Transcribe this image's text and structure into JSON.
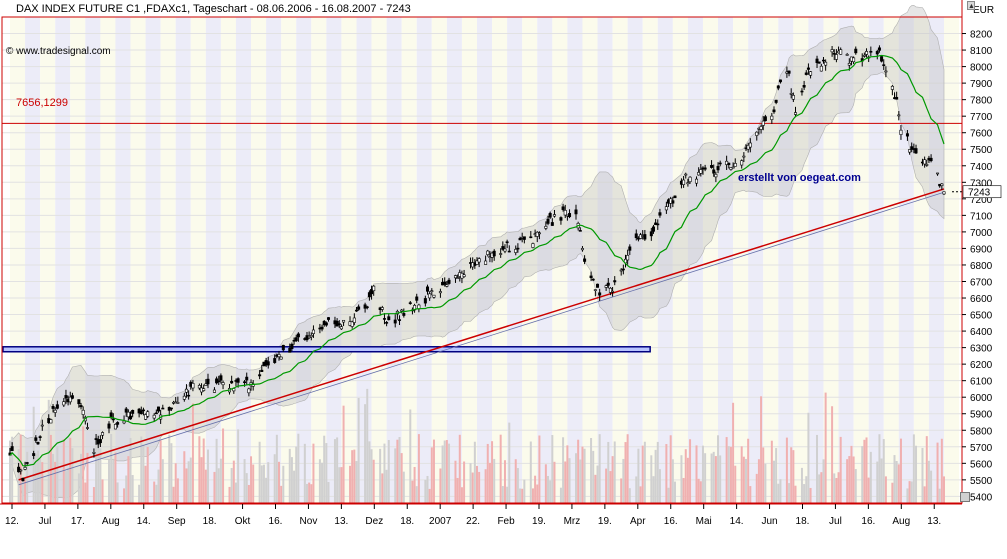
{
  "header": {
    "title": "DAX INDEX FUTURE C1 ,FDAXc1, Tageschart - 08.06.2006 - 16.08.2007 - 7243",
    "copyright": "© www.tradesignal.com",
    "watermark": "erstellt von oegeat.com",
    "currency": "EUR",
    "resistance_label": "7656,1299"
  },
  "colors": {
    "candles": "#000000",
    "moving_average": "#009900",
    "bollinger_band": "#c8c8c8",
    "resistance_line": "#cc0000",
    "trendline": "#cc0000",
    "support_zone": "#b8c4ff",
    "volume_up": "#f0b0b0",
    "volume_down": "#d0d0d0",
    "month_band_a": "#ececf8",
    "month_band_b": "#fbfbec"
  },
  "chart_data": {
    "type": "candlestick",
    "title": "DAX INDEX FUTURE C1 ,FDAXc1, Tageschart - 08.06.2006 - 16.08.2007 - 7243",
    "ylabel": "EUR",
    "ylim": [
      5360,
      8300
    ],
    "y_ticks": [
      5400,
      5500,
      5600,
      5700,
      5800,
      5900,
      6000,
      6100,
      6200,
      6300,
      6400,
      6500,
      6600,
      6700,
      6800,
      6900,
      7000,
      7100,
      7200,
      7300,
      7400,
      7500,
      7600,
      7700,
      7800,
      7900,
      8000,
      8100,
      8200
    ],
    "x_labels": [
      "12.",
      "Jul",
      "17.",
      "Aug",
      "14.",
      "Sep",
      "18.",
      "Okt",
      "16.",
      "Nov",
      "13.",
      "Dez",
      "18.",
      "2007",
      "22.",
      "Feb",
      "19.",
      "Mrz",
      "19.",
      "Apr",
      "16.",
      "Mai",
      "14.",
      "Jun",
      "18.",
      "Jul",
      "16.",
      "Aug",
      "13."
    ],
    "last_price": 7243,
    "last_price_label": "7243",
    "resistance_level": 7656.1299,
    "support_zone": [
      6275,
      6305
    ],
    "trendline": {
      "from": [
        "12.06.2006",
        5500
      ],
      "to": [
        "16.08.2007",
        7260
      ]
    },
    "close_path": [
      [
        "08.06.2006",
        5680
      ],
      [
        "14.06.2006",
        5520
      ],
      [
        "23.06.2006",
        5800
      ],
      [
        "30.06.2006",
        5950
      ],
      [
        "10.07.2006",
        5990
      ],
      [
        "17.07.2006",
        5700
      ],
      [
        "25.07.2006",
        5850
      ],
      [
        "04.08.2006",
        5900
      ],
      [
        "14.08.2006",
        5880
      ],
      [
        "24.08.2006",
        5970
      ],
      [
        "01.09.2006",
        6060
      ],
      [
        "11.09.2006",
        6070
      ],
      [
        "18.09.2006",
        6080
      ],
      [
        "25.09.2006",
        6060
      ],
      [
        "02.10.2006",
        6130
      ],
      [
        "09.10.2006",
        6240
      ],
      [
        "16.10.2006",
        6300
      ],
      [
        "26.10.2006",
        6400
      ],
      [
        "03.11.2006",
        6440
      ],
      [
        "13.11.2006",
        6450
      ],
      [
        "20.11.2006",
        6550
      ],
      [
        "24.11.2006",
        6650
      ],
      [
        "01.12.2006",
        6450
      ],
      [
        "08.12.2006",
        6520
      ],
      [
        "18.12.2006",
        6600
      ],
      [
        "28.12.2006",
        6680
      ],
      [
        "08.01.2007",
        6800
      ],
      [
        "22.01.2007",
        6890
      ],
      [
        "05.02.2007",
        6950
      ],
      [
        "12.02.2007",
        7050
      ],
      [
        "19.02.2007",
        7100
      ],
      [
        "26.02.2007",
        7140
      ],
      [
        "01.03.2007",
        6900
      ],
      [
        "05.03.2007",
        6700
      ],
      [
        "09.03.2007",
        6620
      ],
      [
        "16.03.2007",
        6680
      ],
      [
        "23.03.2007",
        6900
      ],
      [
        "02.04.2007",
        7000
      ],
      [
        "10.04.2007",
        7150
      ],
      [
        "16.04.2007",
        7300
      ],
      [
        "24.04.2007",
        7360
      ],
      [
        "02.05.2007",
        7380
      ],
      [
        "14.05.2007",
        7450
      ],
      [
        "21.05.2007",
        7600
      ],
      [
        "28.05.2007",
        7720
      ],
      [
        "04.06.2007",
        7990
      ],
      [
        "08.06.2007",
        7750
      ],
      [
        "14.06.2007",
        7950
      ],
      [
        "18.06.2007",
        8000
      ],
      [
        "25.06.2007",
        8100
      ],
      [
        "02.07.2007",
        8050
      ],
      [
        "09.07.2007",
        8060
      ],
      [
        "16.07.2007",
        8100
      ],
      [
        "23.07.2007",
        7900
      ],
      [
        "27.07.2007",
        7650
      ],
      [
        "01.08.2007",
        7500
      ],
      [
        "06.08.2007",
        7440
      ],
      [
        "10.08.2007",
        7400
      ],
      [
        "16.08.2007",
        7243
      ]
    ]
  }
}
